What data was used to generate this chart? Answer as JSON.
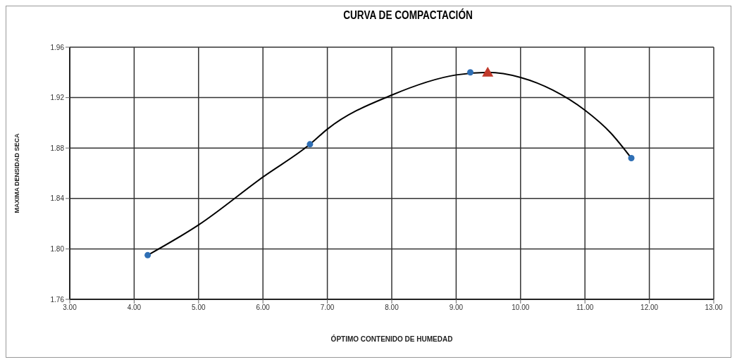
{
  "chart_data": {
    "type": "scatter",
    "title": "CURVA DE COMPACTACIÓN",
    "xlabel": "ÓPTIMO CONTENIDO DE HUMEDAD",
    "ylabel": "MAXIMA DENSIDAD SECA",
    "xlim": [
      3,
      13
    ],
    "xticks": [
      {
        "value": 3,
        "label": "3.00"
      },
      {
        "value": 4,
        "label": "4.00"
      },
      {
        "value": 5,
        "label": "5.00"
      },
      {
        "value": 6,
        "label": "6.00"
      },
      {
        "value": 7,
        "label": "7.00"
      },
      {
        "value": 8,
        "label": "8.00"
      },
      {
        "value": 9,
        "label": "9.00"
      },
      {
        "value": 10,
        "label": "10.00"
      },
      {
        "value": 11,
        "label": "11.00"
      },
      {
        "value": 12,
        "label": "12.00"
      },
      {
        "value": 13,
        "label": "13.00"
      }
    ],
    "ylim": [
      1.76,
      1.96
    ],
    "yticks": [
      {
        "value": 1.76,
        "label": "1.76"
      },
      {
        "value": 1.8,
        "label": "1.80"
      },
      {
        "value": 1.84,
        "label": "1.84"
      },
      {
        "value": 1.88,
        "label": "1.88"
      },
      {
        "value": 1.92,
        "label": "1.92"
      },
      {
        "value": 1.96,
        "label": "1.96"
      }
    ],
    "grid": true,
    "legend": false,
    "series": [
      {
        "type": "line",
        "color": "#000000",
        "marker": "none",
        "x": [
          4.21,
          5,
          6,
          6.73,
          7,
          8,
          9,
          9.5,
          10,
          10.5,
          11,
          11.4,
          11.72
        ],
        "values": [
          1.795,
          1.819,
          1.857,
          1.883,
          1.895,
          1.922,
          1.938,
          1.94,
          1.936,
          1.926,
          1.91,
          1.892,
          1.872
        ]
      },
      {
        "color": "#2f6fb5",
        "marker": "circle",
        "x": [
          4.21,
          6.73,
          9.22,
          11.72
        ],
        "values": [
          1.795,
          1.883,
          1.94,
          1.872
        ]
      },
      {
        "color": "#c0392b",
        "marker": "triangle",
        "x": [
          9.49
        ],
        "values": [
          1.94
        ]
      }
    ]
  }
}
